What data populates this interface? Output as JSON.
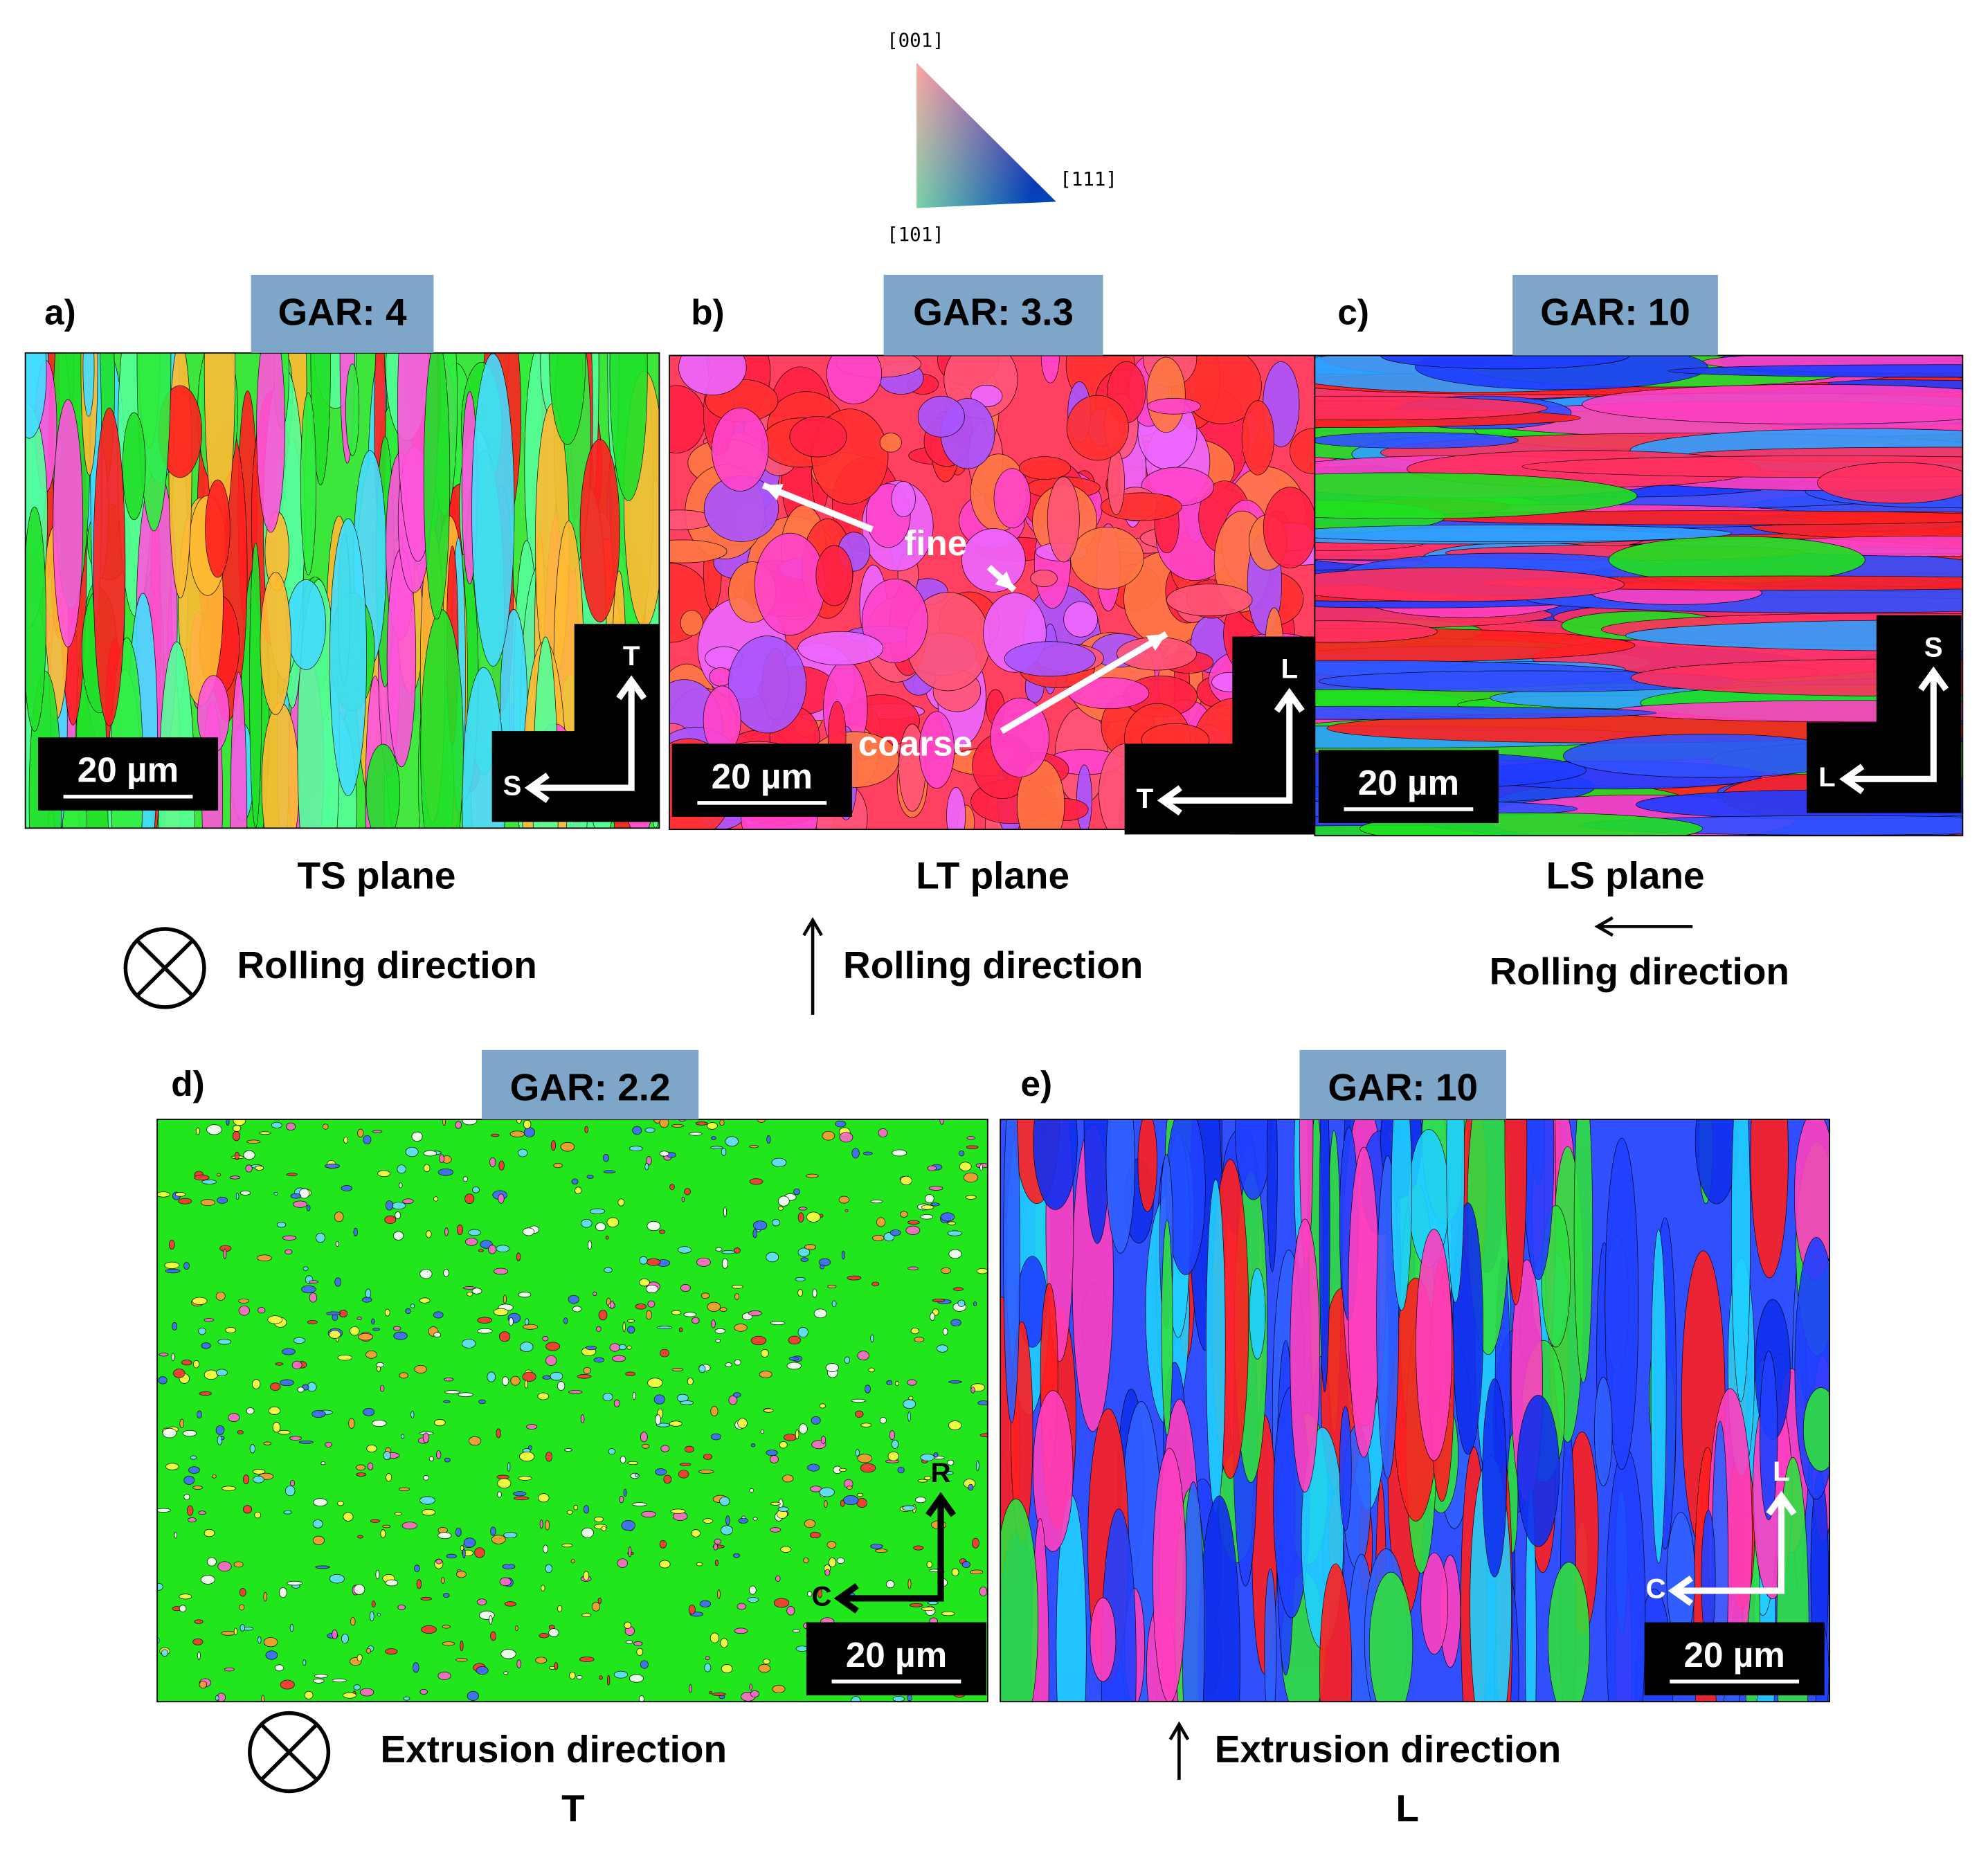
{
  "legend": {
    "top": "[001]",
    "right": "[111]",
    "bottom": "[101]"
  },
  "panels": [
    {
      "label": "a)",
      "gar": "GAR: 4",
      "scale_bar": "20 µm",
      "axis_vertical": "T",
      "axis_horizontal": "S",
      "plane": "TS plane",
      "direction": "Rolling direction"
    },
    {
      "label": "b)",
      "gar": "GAR: 3.3",
      "scale_bar": "20 µm",
      "axis_vertical": "L",
      "axis_horizontal": "T",
      "plane": "LT plane",
      "direction": "Rolling direction",
      "annotations": [
        "fine",
        "coarse"
      ]
    },
    {
      "label": "c)",
      "gar": "GAR: 10",
      "scale_bar": "20 µm",
      "axis_vertical": "S",
      "axis_horizontal": "L",
      "plane": "LS plane",
      "direction": "Rolling direction"
    },
    {
      "label": "d)",
      "gar": "GAR: 2.2",
      "scale_bar": "20 µm",
      "axis_vertical": "R",
      "axis_horizontal": "C",
      "direction": "Extrusion direction",
      "direction_axis": "T"
    },
    {
      "label": "e)",
      "gar": "GAR: 10",
      "scale_bar": "20 µm",
      "axis_vertical": "L",
      "axis_horizontal": "C",
      "direction": "Extrusion direction",
      "direction_axis": "L"
    }
  ]
}
